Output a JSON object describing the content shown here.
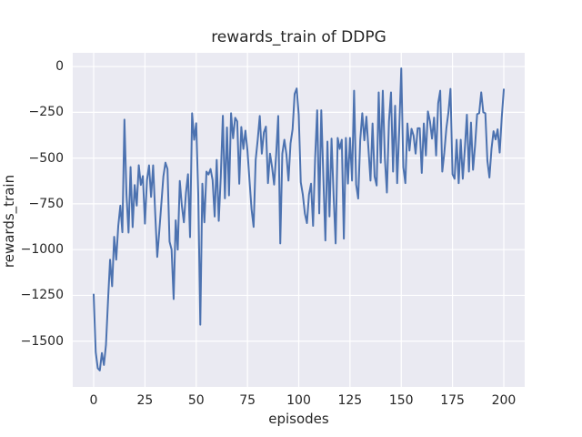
{
  "chart_data": {
    "type": "line",
    "title": "rewards_train of DDPG",
    "xlabel": "episodes",
    "ylabel": "rewards_train",
    "legend": null,
    "grid": true,
    "style": "seaborn-darkgrid",
    "plot_bg_color": "#eaeaf2",
    "grid_color": "#ffffff",
    "line_color": "#4c72b0",
    "text_color": "#262626",
    "xlim": [
      -10.2,
      210.2
    ],
    "ylim": [
      -1750,
      75
    ],
    "x_ticks": [
      0,
      25,
      50,
      75,
      100,
      125,
      150,
      175,
      200
    ],
    "x_tick_labels": [
      "0",
      "25",
      "50",
      "75",
      "100",
      "125",
      "150",
      "175",
      "200"
    ],
    "y_ticks": [
      0,
      -250,
      -500,
      -750,
      -1000,
      -1250,
      -1500
    ],
    "y_tick_labels": [
      "0",
      "−250",
      "−500",
      "−750",
      "−1000",
      "−1250",
      "−1500"
    ],
    "series_name": "rewards_train",
    "x_start": 0,
    "x_step": 1,
    "values": [
      -1245,
      -1560,
      -1648,
      -1660,
      -1565,
      -1630,
      -1520,
      -1280,
      -1055,
      -1200,
      -930,
      -1055,
      -870,
      -760,
      -905,
      -290,
      -700,
      -907,
      -549,
      -877,
      -647,
      -760,
      -539,
      -647,
      -598,
      -858,
      -620,
      -540,
      -712,
      -540,
      -800,
      -1040,
      -900,
      -750,
      -600,
      -525,
      -560,
      -956,
      -1000,
      -1270,
      -840,
      -1000,
      -625,
      -760,
      -851,
      -690,
      -588,
      -932,
      -255,
      -400,
      -310,
      -700,
      -1410,
      -640,
      -851,
      -574,
      -590,
      -560,
      -620,
      -819,
      -510,
      -843,
      -600,
      -269,
      -720,
      -333,
      -704,
      -255,
      -392,
      -280,
      -300,
      -640,
      -330,
      -450,
      -350,
      -460,
      -623,
      -780,
      -876,
      -510,
      -400,
      -270,
      -476,
      -360,
      -328,
      -637,
      -476,
      -550,
      -645,
      -480,
      -270,
      -966,
      -476,
      -400,
      -480,
      -623,
      -420,
      -343,
      -150,
      -120,
      -264,
      -632,
      -700,
      -803,
      -855,
      -700,
      -640,
      -870,
      -500,
      -239,
      -802,
      -239,
      -600,
      -950,
      -410,
      -819,
      -394,
      -700,
      -966,
      -390,
      -450,
      -400,
      -940,
      -390,
      -639,
      -390,
      -623,
      -132,
      -645,
      -721,
      -400,
      -255,
      -403,
      -274,
      -450,
      -623,
      -311,
      -601,
      -650,
      -141,
      -525,
      -132,
      -500,
      -688,
      -300,
      -141,
      -574,
      -214,
      -637,
      -350,
      -10,
      -550,
      -637,
      -311,
      -459,
      -340,
      -377,
      -476,
      -337,
      -337,
      -581,
      -311,
      -486,
      -245,
      -300,
      -394,
      -279,
      -486,
      -200,
      -132,
      -574,
      -470,
      -337,
      -250,
      -122,
      -588,
      -613,
      -400,
      -637,
      -400,
      -613,
      -450,
      -263,
      -574,
      -306,
      -564,
      -431,
      -260,
      -255,
      -141,
      -250,
      -255,
      -515,
      -606,
      -450,
      -353,
      -398,
      -343,
      -470,
      -280,
      -125
    ]
  }
}
